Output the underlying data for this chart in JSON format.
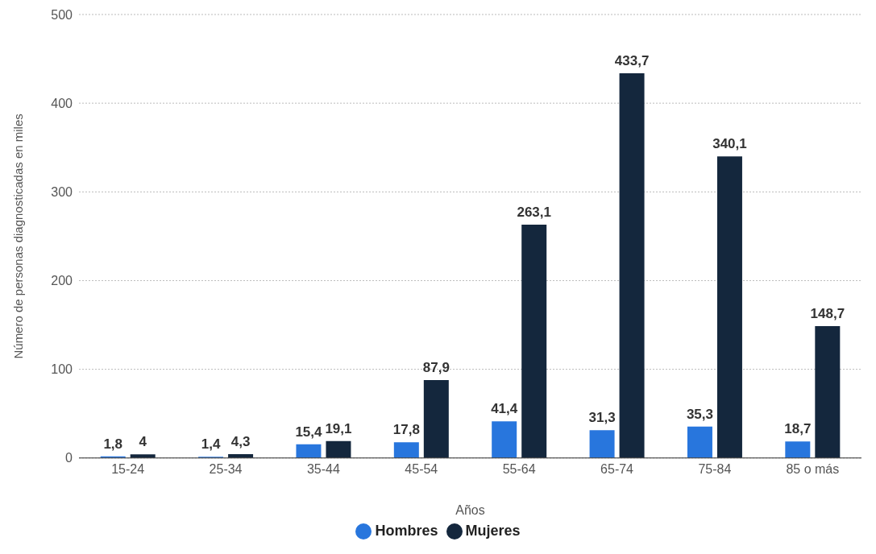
{
  "chart_data": {
    "type": "bar",
    "xlabel": "Años",
    "ylabel": "Número de personas diagnosticadas en miles",
    "categories": [
      "15-24",
      "25-34",
      "35-44",
      "45-54",
      "55-64",
      "65-74",
      "75-84",
      "85 o más"
    ],
    "series": [
      {
        "name": "Hombres",
        "color": "#2876dd",
        "values": [
          1.8,
          1.4,
          15.4,
          17.8,
          41.4,
          31.3,
          35.3,
          18.7
        ],
        "value_labels": [
          "1,8",
          "1,4",
          "15,4",
          "17,8",
          "41,4",
          "31,3",
          "35,3",
          "18,7"
        ]
      },
      {
        "name": "Mujeres",
        "color": "#14273d",
        "values": [
          4,
          4.3,
          19.1,
          87.9,
          263.1,
          433.7,
          340.1,
          148.7
        ],
        "value_labels": [
          "4",
          "4,3",
          "19,1",
          "87,9",
          "263,1",
          "433,7",
          "340,1",
          "148,7"
        ]
      }
    ],
    "ylim": [
      0,
      500
    ],
    "yticks": [
      0,
      100,
      200,
      300,
      400,
      500
    ],
    "grid": "y",
    "legend": "bottom"
  }
}
